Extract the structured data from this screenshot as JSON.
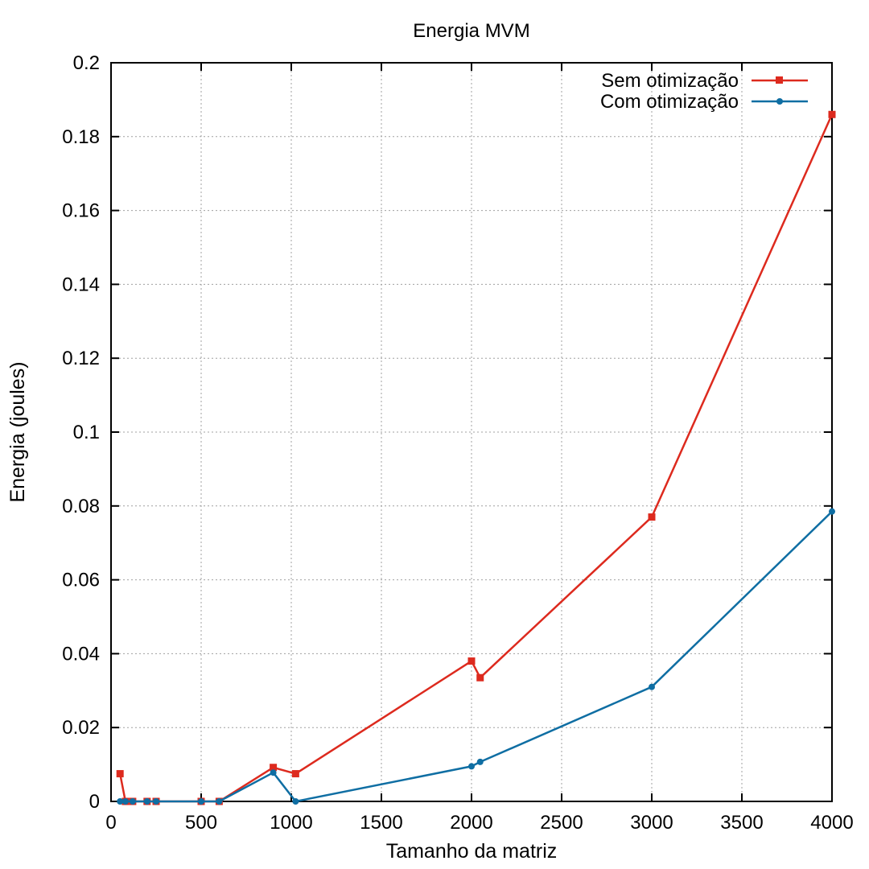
{
  "chart_data": {
    "type": "line",
    "title": "Energia MVM",
    "xlabel": "Tamanho da matriz",
    "ylabel": "Energia (joules)",
    "xlim": [
      0,
      4000
    ],
    "ylim": [
      0,
      0.2
    ],
    "x_ticks": [
      "0",
      "500",
      "1000",
      "1500",
      "2000",
      "2500",
      "3000",
      "3500",
      "4000"
    ],
    "y_ticks": [
      "0",
      "0.02",
      "0.04",
      "0.06",
      "0.08",
      "0.1",
      "0.12",
      "0.14",
      "0.16",
      "0.18",
      "0.2"
    ],
    "grid": true,
    "legend_position": "top-right",
    "series": [
      {
        "name": "Sem otimização",
        "color": "#dd2a1e",
        "marker": "square",
        "points": [
          [
            50,
            0.0075
          ],
          [
            80,
            0.0
          ],
          [
            120,
            0.0
          ],
          [
            200,
            0.0
          ],
          [
            250,
            0.0
          ],
          [
            500,
            0.0
          ],
          [
            600,
            0.0
          ],
          [
            900,
            0.0092
          ],
          [
            1024,
            0.0075
          ],
          [
            2000,
            0.038
          ],
          [
            2048,
            0.0335
          ],
          [
            3000,
            0.077
          ],
          [
            4000,
            0.186
          ]
        ]
      },
      {
        "name": "Com otimização",
        "color": "#0f6ea3",
        "marker": "circle",
        "points": [
          [
            50,
            0.0
          ],
          [
            80,
            0.0
          ],
          [
            120,
            0.0
          ],
          [
            200,
            0.0
          ],
          [
            250,
            0.0
          ],
          [
            500,
            0.0
          ],
          [
            600,
            0.0
          ],
          [
            900,
            0.0078
          ],
          [
            1024,
            0.0
          ],
          [
            2000,
            0.0095
          ],
          [
            2048,
            0.0107
          ],
          [
            3000,
            0.031
          ],
          [
            4000,
            0.0785
          ]
        ]
      }
    ]
  }
}
